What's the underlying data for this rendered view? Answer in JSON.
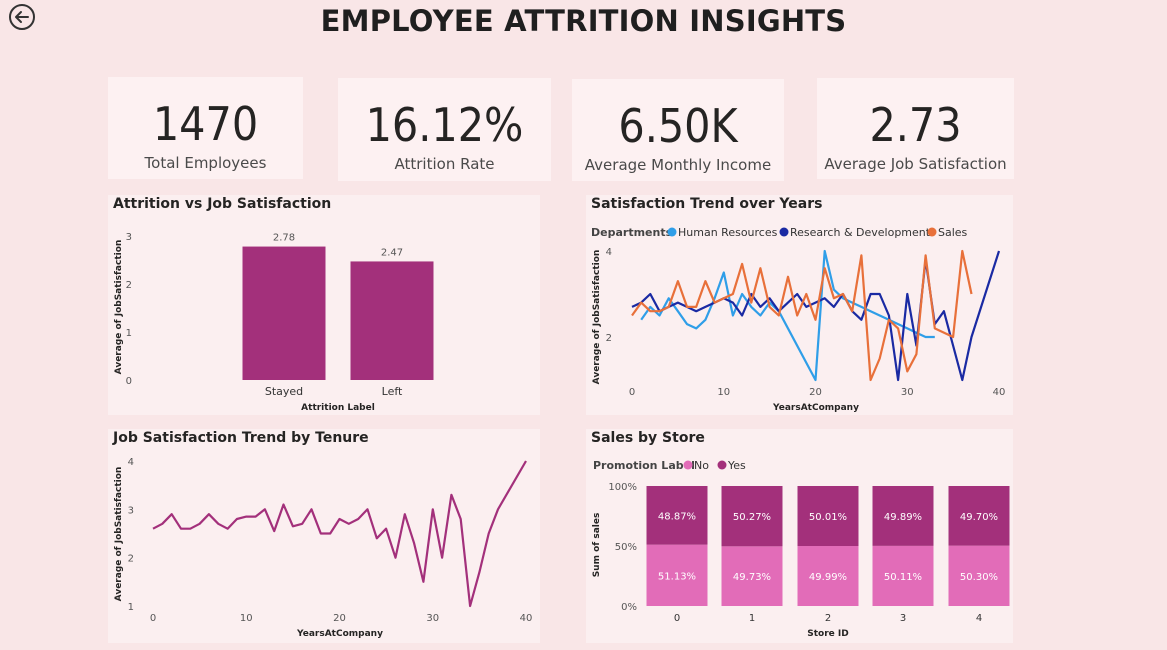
{
  "title": "EMPLOYEE ATTRITION INSIGHTS",
  "kpis": [
    {
      "value": "1470",
      "label": "Total Employees"
    },
    {
      "value": "16.12%",
      "label": "Attrition Rate"
    },
    {
      "value": "6.50K",
      "label": "Average Monthly Income"
    },
    {
      "value": "2.73",
      "label": "Average Job Satisfaction"
    }
  ],
  "colors": {
    "magenta": "#a3307b",
    "pink": "#e26cb8",
    "hr": "#2f9ee8",
    "rnd": "#1a2aa3",
    "sales": "#e8703a"
  },
  "chart_data": [
    {
      "id": "attrition_bar",
      "type": "bar",
      "title": "Attrition vs Job Satisfaction",
      "xlabel": "Attrition Label",
      "ylabel": "Average of JobSatisfaction",
      "categories": [
        "Stayed",
        "Left"
      ],
      "values": [
        2.78,
        2.47
      ],
      "value_labels": [
        "2.78",
        "2.47"
      ],
      "ylim": [
        0,
        3
      ],
      "yticks": [
        "0",
        "1",
        "2",
        "3"
      ]
    },
    {
      "id": "dept_trend",
      "type": "line",
      "title": "Satisfaction Trend over Years",
      "legend_title": "Departments",
      "xlabel": "YearsAtCompany",
      "ylabel": "Average of JobSatisfaction",
      "xlim": [
        0,
        40
      ],
      "ylim": [
        1,
        4
      ],
      "xticks": [
        "0",
        "10",
        "20",
        "30",
        "40"
      ],
      "yticks": [
        "2",
        "4"
      ],
      "series": [
        {
          "name": "Human Resources",
          "x": [
            1,
            2,
            3,
            4,
            5,
            6,
            7,
            8,
            9,
            10,
            11,
            12,
            13,
            14,
            15,
            16,
            20,
            21,
            22,
            23,
            24,
            25,
            26,
            27,
            28,
            29,
            30,
            31,
            32,
            33
          ],
          "y": [
            2.4,
            2.7,
            2.5,
            2.9,
            2.6,
            2.3,
            2.2,
            2.4,
            2.9,
            3.5,
            2.5,
            3.0,
            2.7,
            2.5,
            2.8,
            2.6,
            1.0,
            4.0,
            3.1,
            2.9,
            2.8,
            2.7,
            2.6,
            2.5,
            2.4,
            2.3,
            2.2,
            2.1,
            2.0,
            2.0
          ]
        },
        {
          "name": "Research & Development",
          "x": [
            0,
            1,
            2,
            3,
            4,
            5,
            6,
            7,
            8,
            9,
            10,
            11,
            12,
            13,
            14,
            15,
            16,
            17,
            18,
            19,
            20,
            21,
            22,
            23,
            24,
            25,
            26,
            27,
            28,
            29,
            30,
            31,
            32,
            33,
            34,
            35,
            36,
            37,
            40
          ],
          "y": [
            2.7,
            2.8,
            3.0,
            2.6,
            2.7,
            2.8,
            2.7,
            2.6,
            2.7,
            2.8,
            2.9,
            2.8,
            2.5,
            3.0,
            2.7,
            2.9,
            2.6,
            2.8,
            3.0,
            2.7,
            2.8,
            2.9,
            2.7,
            3.0,
            2.6,
            2.4,
            3.0,
            3.0,
            2.5,
            1.0,
            3.0,
            1.8,
            3.8,
            2.3,
            2.6,
            1.8,
            1.0,
            2.0,
            4.0
          ]
        },
        {
          "name": "Sales",
          "x": [
            0,
            1,
            2,
            3,
            4,
            5,
            6,
            7,
            8,
            9,
            10,
            11,
            12,
            13,
            14,
            15,
            16,
            17,
            18,
            19,
            20,
            21,
            22,
            23,
            24,
            25,
            26,
            27,
            28,
            29,
            30,
            31,
            32,
            33,
            35,
            36,
            37
          ],
          "y": [
            2.5,
            2.8,
            2.6,
            2.6,
            2.7,
            3.3,
            2.7,
            2.7,
            3.3,
            2.8,
            2.9,
            3.0,
            3.7,
            2.8,
            3.6,
            2.7,
            2.5,
            3.4,
            2.5,
            3.0,
            2.4,
            3.6,
            2.9,
            3.0,
            2.6,
            3.9,
            1.0,
            1.5,
            2.4,
            2.2,
            1.2,
            1.6,
            3.9,
            2.2,
            2.0,
            4.0,
            3.0
          ]
        }
      ]
    },
    {
      "id": "tenure_trend",
      "type": "line",
      "title": "Job Satisfaction Trend by Tenure",
      "xlabel": "YearsAtCompany",
      "ylabel": "Average of JobSatisfaction",
      "xlim": [
        0,
        40
      ],
      "ylim": [
        1,
        4
      ],
      "xticks": [
        "0",
        "10",
        "20",
        "30",
        "40"
      ],
      "yticks": [
        "1",
        "2",
        "3",
        "4"
      ],
      "series": [
        {
          "x": [
            0,
            1,
            2,
            3,
            4,
            5,
            6,
            7,
            8,
            9,
            10,
            11,
            12,
            13,
            14,
            15,
            16,
            17,
            18,
            19,
            20,
            21,
            22,
            23,
            24,
            25,
            26,
            27,
            28,
            29,
            30,
            31,
            32,
            33,
            34,
            35,
            36,
            37,
            40
          ],
          "y": [
            2.6,
            2.7,
            2.9,
            2.6,
            2.6,
            2.7,
            2.9,
            2.7,
            2.6,
            2.8,
            2.85,
            2.85,
            3.0,
            2.55,
            3.1,
            2.65,
            2.7,
            3.0,
            2.5,
            2.5,
            2.8,
            2.7,
            2.8,
            3.0,
            2.4,
            2.6,
            2.0,
            2.9,
            2.3,
            1.5,
            3.0,
            2.0,
            3.3,
            2.8,
            1.0,
            1.7,
            2.5,
            3.0,
            4.0
          ]
        }
      ]
    },
    {
      "id": "sales_store",
      "type": "bar",
      "stacked": "100%",
      "title": "Sales by Store",
      "legend_title": "Promotion Label",
      "xlabel": "Store ID",
      "ylabel": "Sum of sales",
      "categories": [
        "0",
        "1",
        "2",
        "3",
        "4"
      ],
      "yticks": [
        "0%",
        "50%",
        "100%"
      ],
      "series": [
        {
          "name": "No",
          "values": [
            51.13,
            49.73,
            49.99,
            50.11,
            50.3
          ],
          "labels": [
            "51.13%",
            "49.73%",
            "49.99%",
            "50.11%",
            "50.30%"
          ]
        },
        {
          "name": "Yes",
          "values": [
            48.87,
            50.27,
            50.01,
            49.89,
            49.7
          ],
          "labels": [
            "48.87%",
            "50.27%",
            "50.01%",
            "49.89%",
            "49.70%"
          ]
        }
      ]
    }
  ]
}
